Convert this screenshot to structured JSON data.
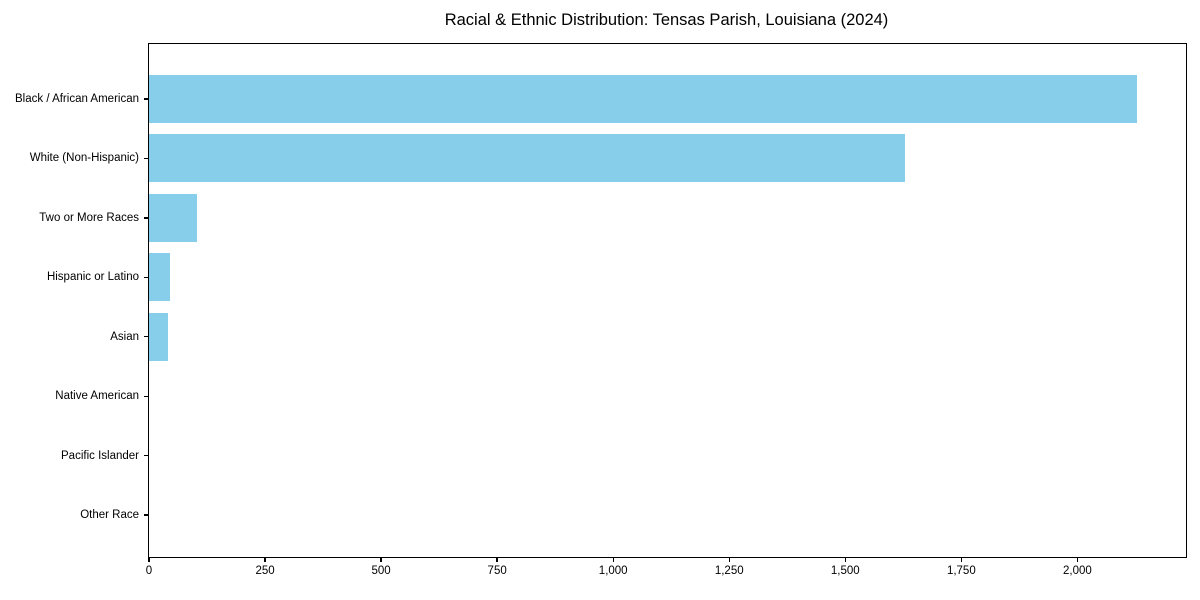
{
  "title": "Racial & Ethnic Distribution: Tensas Parish, Louisiana (2024)",
  "colors": {
    "bar": "#87CEEB",
    "axis": "#000000",
    "text": "#000000",
    "background": "#FFFFFF"
  },
  "chart_data": {
    "type": "bar",
    "orientation": "horizontal",
    "title": "Racial & Ethnic Distribution: Tensas Parish, Louisiana (2024)",
    "categories": [
      "Black / African American",
      "White (Non-Hispanic)",
      "Two or More Races",
      "Hispanic or Latino",
      "Asian",
      "Native American",
      "Pacific Islander",
      "Other Race"
    ],
    "values": [
      2128,
      1628,
      103,
      45,
      40,
      0,
      0,
      0
    ],
    "xlabel": "",
    "ylabel": "",
    "xlim": [
      0,
      2234
    ],
    "x_ticks": [
      0,
      250,
      500,
      750,
      1000,
      1250,
      1500,
      1750,
      2000
    ],
    "x_tick_labels": [
      "0",
      "250",
      "500",
      "750",
      "1,000",
      "1,250",
      "1,500",
      "1,750",
      "2,000"
    ],
    "grid": false,
    "legend": null,
    "bar_color": "#87CEEB"
  }
}
